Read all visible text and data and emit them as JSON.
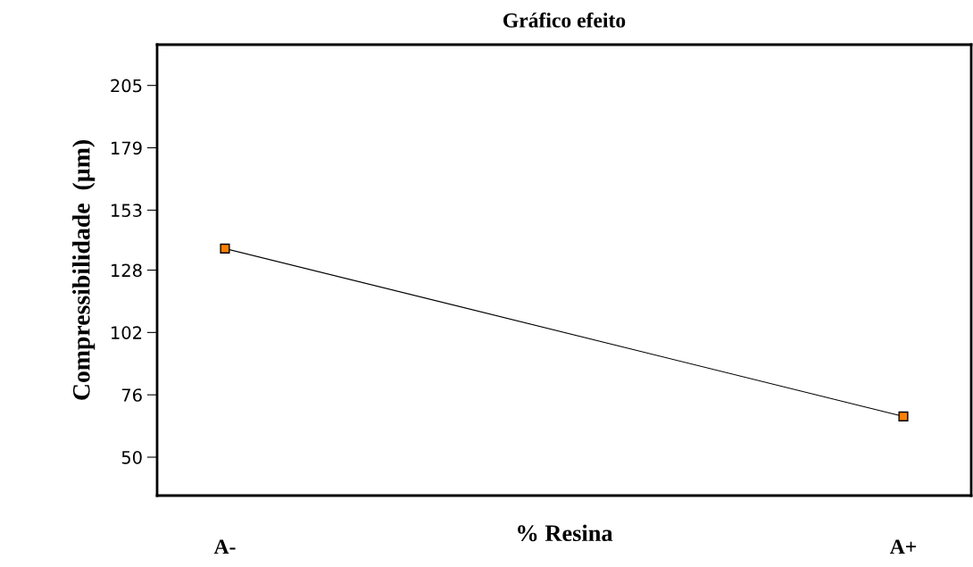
{
  "chart_data": {
    "type": "line",
    "title": "Gráfico efeito",
    "xlabel": "% Resina",
    "ylabel": "Compressibilidade  (µm)",
    "categories": [
      "A-",
      "A+"
    ],
    "series": [
      {
        "color": "#ff8000",
        "values": [
          137,
          67
        ]
      }
    ],
    "ylim": [
      34,
      222
    ],
    "yticks": [
      50,
      76,
      102,
      128,
      153,
      179,
      205
    ],
    "grid": false,
    "marker": "square",
    "line_style": "solid"
  }
}
